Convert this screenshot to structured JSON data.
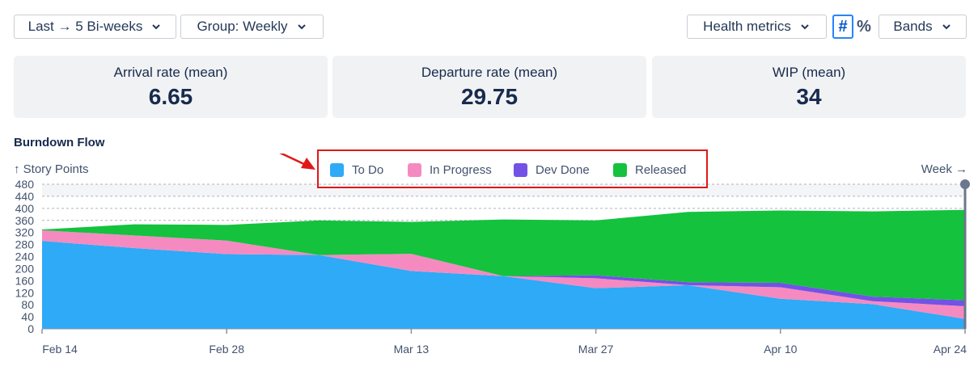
{
  "toolbar": {
    "range_label": "Last → 5 Bi-weeks",
    "group_label": "Group: Weekly",
    "health_label": "Health metrics",
    "count_toggle": "#",
    "percent_toggle": "%",
    "bands_label": "Bands"
  },
  "metrics": [
    {
      "label": "Arrival rate (mean)",
      "value": "6.65"
    },
    {
      "label": "Departure rate (mean)",
      "value": "29.75"
    },
    {
      "label": "WIP (mean)",
      "value": "34"
    }
  ],
  "colors": {
    "todo": "#2eaaf7",
    "in_progress": "#f58ac1",
    "dev_done": "#7352e6",
    "released": "#14c23e",
    "axis": "#6b778c",
    "grid": "#aeb4bd",
    "annotation": "#e01818"
  },
  "chart_data": {
    "type": "area",
    "stacked": true,
    "title": "Burndown Flow",
    "ylabel": "↑ Story Points",
    "xlabel": "Week →",
    "ylim": [
      0,
      480
    ],
    "yticks": [
      0,
      40,
      80,
      120,
      160,
      200,
      240,
      280,
      320,
      360,
      400,
      440,
      480
    ],
    "x": [
      "Feb 14",
      "Feb 21",
      "Feb 28",
      "Mar 6",
      "Mar 13",
      "Mar 20",
      "Mar 27",
      "Apr 3",
      "Apr 10",
      "Apr 17",
      "Apr 24"
    ],
    "xticks": [
      "Feb 14",
      "Feb 28",
      "Mar 13",
      "Mar 27",
      "Apr 10",
      "Apr 24"
    ],
    "series": [
      {
        "name": "To Do",
        "key": "todo",
        "values": [
          292,
          268,
          248,
          245,
          192,
          175,
          135,
          145,
          100,
          82,
          33
        ]
      },
      {
        "name": "In Progress",
        "key": "in_progress",
        "values": [
          35,
          42,
          45,
          0,
          57,
          0,
          33,
          0,
          38,
          10,
          42
        ]
      },
      {
        "name": "Dev Done",
        "key": "dev_done",
        "values": [
          0,
          0,
          0,
          0,
          0,
          0,
          10,
          10,
          15,
          15,
          20
        ]
      },
      {
        "name": "Released",
        "key": "released",
        "values": [
          3,
          37,
          52,
          115,
          106,
          188,
          182,
          233,
          240,
          283,
          300
        ]
      }
    ],
    "legend_position": "top-center",
    "grid": true
  }
}
